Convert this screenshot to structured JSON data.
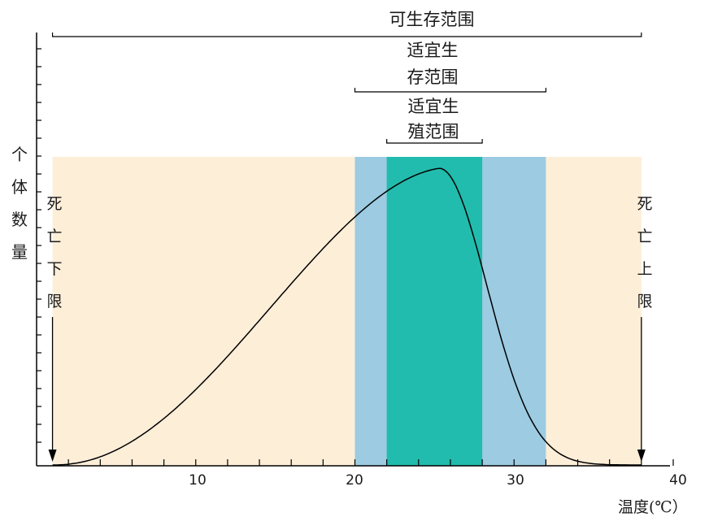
{
  "diagram": {
    "y_axis_label": [
      "个",
      "体",
      "数",
      "量"
    ],
    "x_axis_label": "温度(℃）",
    "x_ticks": [
      "10",
      "20",
      "30",
      "40"
    ],
    "x_domain": [
      0,
      40
    ],
    "survival_range": {
      "label": "可生存范围",
      "from": 1,
      "to": 38
    },
    "suitable_survival_range": {
      "label_line1": "适宜生",
      "label_line2": "存范围",
      "from": 20,
      "to": 32
    },
    "suitable_breeding_range": {
      "label_line1": "适宜生",
      "label_line2": "殖范围",
      "from": 22,
      "to": 28
    },
    "lower_lethal_limit": {
      "chars": [
        "死",
        "亡",
        "下",
        "限"
      ],
      "at": 1
    },
    "upper_lethal_limit": {
      "chars": [
        "死",
        "亡",
        "上",
        "限"
      ],
      "at": 38
    },
    "curve_peak_temp": 25.3,
    "colors": {
      "survival_band": "#fdeed8",
      "suitable_survival_band": "#9ccbe2",
      "suitable_breeding_band": "#21bcad",
      "line": "#000000"
    }
  }
}
